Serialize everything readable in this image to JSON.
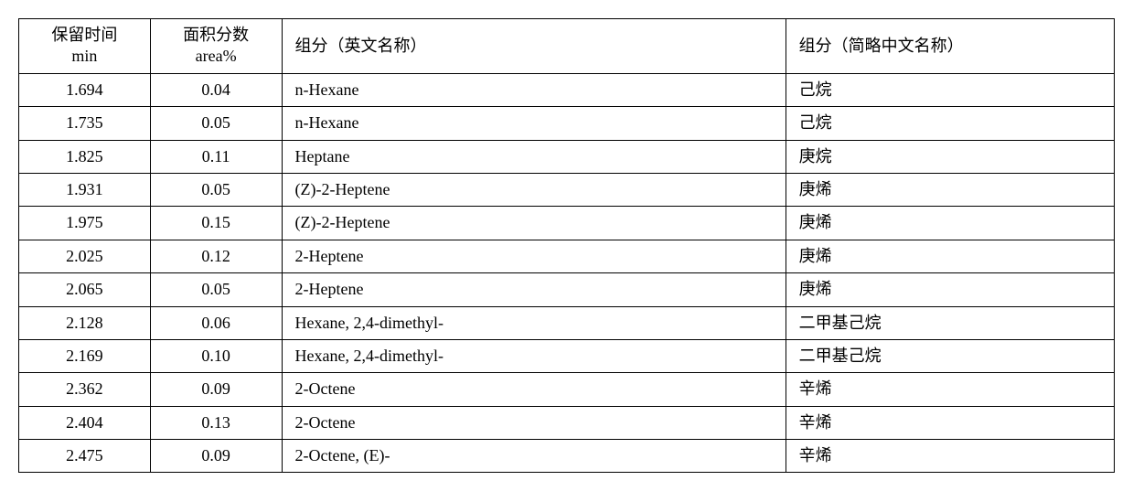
{
  "table": {
    "type": "table",
    "columns": [
      {
        "line1": "保留时间",
        "line2": "min",
        "align": "center"
      },
      {
        "line1": "面积分数",
        "line2": "area%",
        "align": "center"
      },
      {
        "line1": "组分（英文名称）",
        "line2": "",
        "align": "left"
      },
      {
        "line1": "组分（简略中文名称）",
        "line2": "",
        "align": "left"
      }
    ],
    "rows": [
      {
        "rt": "1.694",
        "area": "0.04",
        "en": "n-Hexane",
        "cn": "己烷"
      },
      {
        "rt": "1.735",
        "area": "0.05",
        "en": "n-Hexane",
        "cn": "己烷"
      },
      {
        "rt": "1.825",
        "area": "0.11",
        "en": "Heptane",
        "cn": "庚烷"
      },
      {
        "rt": "1.931",
        "area": "0.05",
        "en": "(Z)-2-Heptene",
        "cn": "庚烯"
      },
      {
        "rt": "1.975",
        "area": "0.15",
        "en": "(Z)-2-Heptene",
        "cn": "庚烯"
      },
      {
        "rt": "2.025",
        "area": "0.12",
        "en": "2-Heptene",
        "cn": "庚烯"
      },
      {
        "rt": "2.065",
        "area": "0.05",
        "en": "2-Heptene",
        "cn": "庚烯"
      },
      {
        "rt": "2.128",
        "area": "0.06",
        "en": "Hexane, 2,4-dimethyl-",
        "cn": "二甲基己烷"
      },
      {
        "rt": "2.169",
        "area": "0.10",
        "en": "Hexane, 2,4-dimethyl-",
        "cn": "二甲基己烷"
      },
      {
        "rt": "2.362",
        "area": "0.09",
        "en": "2-Octene",
        "cn": "辛烯"
      },
      {
        "rt": "2.404",
        "area": "0.13",
        "en": "2-Octene",
        "cn": "辛烯"
      },
      {
        "rt": "2.475",
        "area": "0.09",
        "en": "2-Octene, (E)-",
        "cn": "辛烯"
      }
    ],
    "border_color": "#000000",
    "background_color": "#ffffff",
    "font_size_pt": 14
  }
}
